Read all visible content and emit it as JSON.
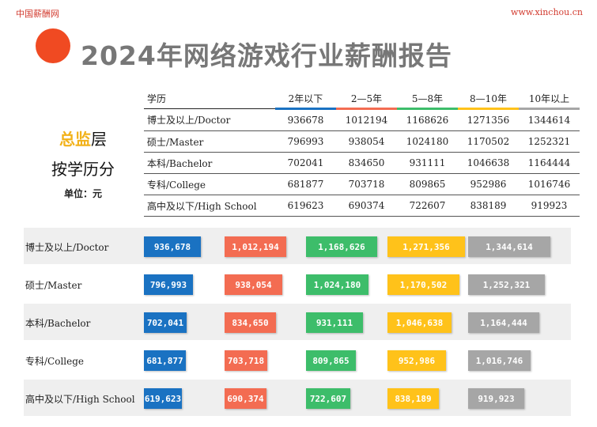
{
  "header": {
    "brand_left": "中国薪酬网",
    "brand_right": "www.xinchou.cn",
    "title": "2024年网络游戏行业薪酬报告"
  },
  "side": {
    "level_highlight": "总监",
    "level_rest": "层",
    "subtitle": "按学历分",
    "unit": "单位：元"
  },
  "colors": {
    "dot": "#f04a22",
    "series": [
      "#1a72c2",
      "#f36c52",
      "#3dbd6a",
      "#ffc21a",
      "#a6a6a6"
    ]
  },
  "chart_data": {
    "type": "bar",
    "table_header": "学历",
    "categories": [
      "2年以下",
      "2—5年",
      "5—8年",
      "8—10年",
      "10年以上"
    ],
    "rows": [
      {
        "label": "博士及以上/Doctor",
        "values": [
          936678,
          1012194,
          1168626,
          1271356,
          1344614
        ],
        "display": [
          "936,678",
          "1,012,194",
          "1,168,626",
          "1,271,356",
          "1,344,614"
        ]
      },
      {
        "label": "硕士/Master",
        "values": [
          796993,
          938054,
          1024180,
          1170502,
          1252321
        ],
        "display": [
          "796,993",
          "938,054",
          "1,024,180",
          "1,170,502",
          "1,252,321"
        ]
      },
      {
        "label": "本科/Bachelor",
        "values": [
          702041,
          834650,
          931111,
          1046638,
          1164444
        ],
        "display": [
          "702,041",
          "834,650",
          "931,111",
          "1,046,638",
          "1,164,444"
        ]
      },
      {
        "label": "专科/College",
        "values": [
          681877,
          703718,
          809865,
          952986,
          1016746
        ],
        "display": [
          "681,877",
          "703,718",
          "809,865",
          "952,986",
          "1,016,746"
        ]
      },
      {
        "label": "高中及以下/High School",
        "values": [
          619623,
          690374,
          722607,
          838189,
          919923
        ],
        "display": [
          "619,623",
          "690,374",
          "722,607",
          "838,189",
          "919,923"
        ]
      }
    ]
  }
}
